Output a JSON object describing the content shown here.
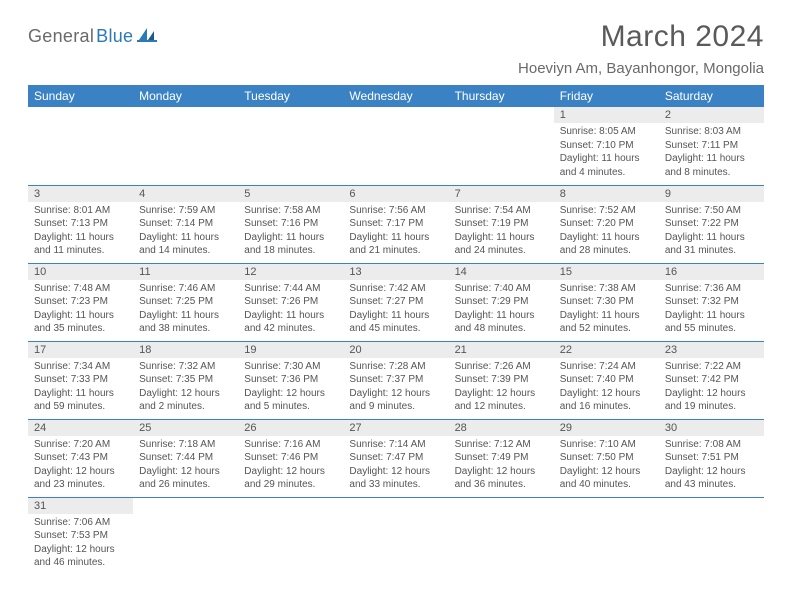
{
  "logo": {
    "general": "General",
    "blue": "Blue"
  },
  "title": "March 2024",
  "location": "Hoeviyn Am, Bayanhongor, Mongolia",
  "colors": {
    "header_bg": "#3b82c4",
    "header_text": "#ffffff",
    "daynum_bg": "#ececec",
    "border": "#3b82c4",
    "text": "#555555",
    "logo_general": "#6a6a6a",
    "logo_blue": "#2a7ab8"
  },
  "typography": {
    "title_fontsize": 30,
    "location_fontsize": 15,
    "header_fontsize": 12,
    "daynum_fontsize": 11,
    "content_fontsize": 10
  },
  "weekdays": [
    "Sunday",
    "Monday",
    "Tuesday",
    "Wednesday",
    "Thursday",
    "Friday",
    "Saturday"
  ],
  "weeks": [
    [
      null,
      null,
      null,
      null,
      null,
      {
        "n": "1",
        "sr": "Sunrise: 8:05 AM",
        "ss": "Sunset: 7:10 PM",
        "dl": "Daylight: 11 hours and 4 minutes."
      },
      {
        "n": "2",
        "sr": "Sunrise: 8:03 AM",
        "ss": "Sunset: 7:11 PM",
        "dl": "Daylight: 11 hours and 8 minutes."
      }
    ],
    [
      {
        "n": "3",
        "sr": "Sunrise: 8:01 AM",
        "ss": "Sunset: 7:13 PM",
        "dl": "Daylight: 11 hours and 11 minutes."
      },
      {
        "n": "4",
        "sr": "Sunrise: 7:59 AM",
        "ss": "Sunset: 7:14 PM",
        "dl": "Daylight: 11 hours and 14 minutes."
      },
      {
        "n": "5",
        "sr": "Sunrise: 7:58 AM",
        "ss": "Sunset: 7:16 PM",
        "dl": "Daylight: 11 hours and 18 minutes."
      },
      {
        "n": "6",
        "sr": "Sunrise: 7:56 AM",
        "ss": "Sunset: 7:17 PM",
        "dl": "Daylight: 11 hours and 21 minutes."
      },
      {
        "n": "7",
        "sr": "Sunrise: 7:54 AM",
        "ss": "Sunset: 7:19 PM",
        "dl": "Daylight: 11 hours and 24 minutes."
      },
      {
        "n": "8",
        "sr": "Sunrise: 7:52 AM",
        "ss": "Sunset: 7:20 PM",
        "dl": "Daylight: 11 hours and 28 minutes."
      },
      {
        "n": "9",
        "sr": "Sunrise: 7:50 AM",
        "ss": "Sunset: 7:22 PM",
        "dl": "Daylight: 11 hours and 31 minutes."
      }
    ],
    [
      {
        "n": "10",
        "sr": "Sunrise: 7:48 AM",
        "ss": "Sunset: 7:23 PM",
        "dl": "Daylight: 11 hours and 35 minutes."
      },
      {
        "n": "11",
        "sr": "Sunrise: 7:46 AM",
        "ss": "Sunset: 7:25 PM",
        "dl": "Daylight: 11 hours and 38 minutes."
      },
      {
        "n": "12",
        "sr": "Sunrise: 7:44 AM",
        "ss": "Sunset: 7:26 PM",
        "dl": "Daylight: 11 hours and 42 minutes."
      },
      {
        "n": "13",
        "sr": "Sunrise: 7:42 AM",
        "ss": "Sunset: 7:27 PM",
        "dl": "Daylight: 11 hours and 45 minutes."
      },
      {
        "n": "14",
        "sr": "Sunrise: 7:40 AM",
        "ss": "Sunset: 7:29 PM",
        "dl": "Daylight: 11 hours and 48 minutes."
      },
      {
        "n": "15",
        "sr": "Sunrise: 7:38 AM",
        "ss": "Sunset: 7:30 PM",
        "dl": "Daylight: 11 hours and 52 minutes."
      },
      {
        "n": "16",
        "sr": "Sunrise: 7:36 AM",
        "ss": "Sunset: 7:32 PM",
        "dl": "Daylight: 11 hours and 55 minutes."
      }
    ],
    [
      {
        "n": "17",
        "sr": "Sunrise: 7:34 AM",
        "ss": "Sunset: 7:33 PM",
        "dl": "Daylight: 11 hours and 59 minutes."
      },
      {
        "n": "18",
        "sr": "Sunrise: 7:32 AM",
        "ss": "Sunset: 7:35 PM",
        "dl": "Daylight: 12 hours and 2 minutes."
      },
      {
        "n": "19",
        "sr": "Sunrise: 7:30 AM",
        "ss": "Sunset: 7:36 PM",
        "dl": "Daylight: 12 hours and 5 minutes."
      },
      {
        "n": "20",
        "sr": "Sunrise: 7:28 AM",
        "ss": "Sunset: 7:37 PM",
        "dl": "Daylight: 12 hours and 9 minutes."
      },
      {
        "n": "21",
        "sr": "Sunrise: 7:26 AM",
        "ss": "Sunset: 7:39 PM",
        "dl": "Daylight: 12 hours and 12 minutes."
      },
      {
        "n": "22",
        "sr": "Sunrise: 7:24 AM",
        "ss": "Sunset: 7:40 PM",
        "dl": "Daylight: 12 hours and 16 minutes."
      },
      {
        "n": "23",
        "sr": "Sunrise: 7:22 AM",
        "ss": "Sunset: 7:42 PM",
        "dl": "Daylight: 12 hours and 19 minutes."
      }
    ],
    [
      {
        "n": "24",
        "sr": "Sunrise: 7:20 AM",
        "ss": "Sunset: 7:43 PM",
        "dl": "Daylight: 12 hours and 23 minutes."
      },
      {
        "n": "25",
        "sr": "Sunrise: 7:18 AM",
        "ss": "Sunset: 7:44 PM",
        "dl": "Daylight: 12 hours and 26 minutes."
      },
      {
        "n": "26",
        "sr": "Sunrise: 7:16 AM",
        "ss": "Sunset: 7:46 PM",
        "dl": "Daylight: 12 hours and 29 minutes."
      },
      {
        "n": "27",
        "sr": "Sunrise: 7:14 AM",
        "ss": "Sunset: 7:47 PM",
        "dl": "Daylight: 12 hours and 33 minutes."
      },
      {
        "n": "28",
        "sr": "Sunrise: 7:12 AM",
        "ss": "Sunset: 7:49 PM",
        "dl": "Daylight: 12 hours and 36 minutes."
      },
      {
        "n": "29",
        "sr": "Sunrise: 7:10 AM",
        "ss": "Sunset: 7:50 PM",
        "dl": "Daylight: 12 hours and 40 minutes."
      },
      {
        "n": "30",
        "sr": "Sunrise: 7:08 AM",
        "ss": "Sunset: 7:51 PM",
        "dl": "Daylight: 12 hours and 43 minutes."
      }
    ],
    [
      {
        "n": "31",
        "sr": "Sunrise: 7:06 AM",
        "ss": "Sunset: 7:53 PM",
        "dl": "Daylight: 12 hours and 46 minutes."
      },
      null,
      null,
      null,
      null,
      null,
      null
    ]
  ]
}
